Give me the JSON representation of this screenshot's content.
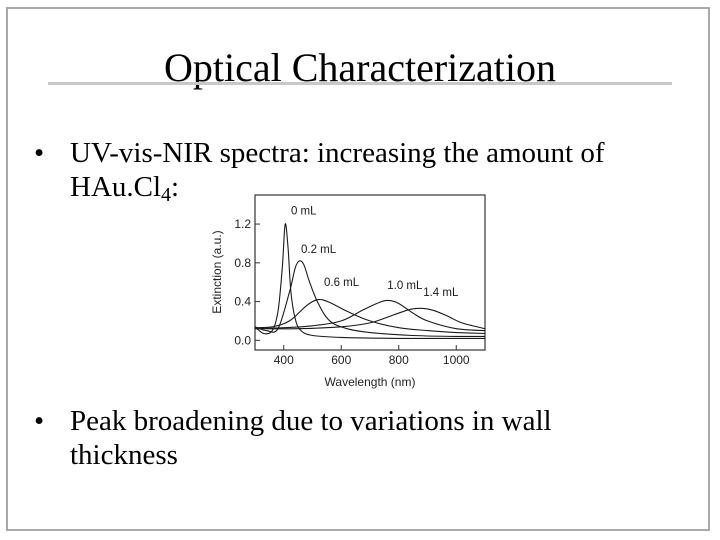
{
  "slide": {
    "title": "Optical Characterization",
    "bullets": [
      {
        "marker": "•",
        "line1": "UV-vis-NIR spectra: increasing the amount of",
        "line2_prefix": "HAu.Cl",
        "line2_sub": "4",
        "line2_suffix": ":"
      },
      {
        "marker": "•",
        "line1": "Peak broadening due to variations in wall",
        "line2": "thickness"
      }
    ]
  },
  "chart_data": {
    "type": "line",
    "xlabel": "Wavelength (nm)",
    "ylabel": "Extinction (a.u.)",
    "xlim": [
      300,
      1100
    ],
    "ylim": [
      -0.1,
      1.5
    ],
    "x_ticks": [
      400,
      600,
      800,
      1000
    ],
    "y_ticks": [
      0.0,
      0.4,
      0.8,
      1.2
    ],
    "y_tick_labels": [
      "0.0",
      "0.4",
      "0.8",
      "1.2"
    ],
    "series": [
      {
        "name": "0 mL",
        "x": [
          300,
          330,
          360,
          380,
          395,
          405,
          415,
          425,
          440,
          460,
          500,
          600,
          800,
          1000,
          1100
        ],
        "y": [
          0.14,
          0.07,
          0.1,
          0.3,
          0.75,
          1.2,
          0.95,
          0.5,
          0.22,
          0.1,
          0.05,
          0.03,
          0.02,
          0.02,
          0.02
        ],
        "label_x": 425,
        "label_y": 1.3
      },
      {
        "name": "0.2 mL",
        "x": [
          300,
          340,
          380,
          420,
          440,
          455,
          470,
          490,
          520,
          560,
          620,
          700,
          850,
          1000,
          1100
        ],
        "y": [
          0.14,
          0.1,
          0.12,
          0.5,
          0.75,
          0.82,
          0.78,
          0.6,
          0.38,
          0.2,
          0.12,
          0.08,
          0.05,
          0.04,
          0.04
        ],
        "label_x": 460,
        "label_y": 0.9
      },
      {
        "name": "0.6 mL",
        "x": [
          300,
          360,
          420,
          480,
          520,
          560,
          620,
          700,
          800,
          900,
          1000,
          1100
        ],
        "y": [
          0.13,
          0.14,
          0.2,
          0.36,
          0.42,
          0.39,
          0.3,
          0.2,
          0.13,
          0.1,
          0.08,
          0.07
        ],
        "label_x": 540,
        "label_y": 0.56
      },
      {
        "name": "1.0 mL",
        "x": [
          300,
          400,
          500,
          600,
          680,
          740,
          770,
          800,
          850,
          900,
          1000,
          1100
        ],
        "y": [
          0.12,
          0.13,
          0.15,
          0.2,
          0.32,
          0.4,
          0.41,
          0.38,
          0.28,
          0.2,
          0.12,
          0.1
        ],
        "label_x": 760,
        "label_y": 0.53
      },
      {
        "name": "1.4 mL",
        "x": [
          300,
          450,
          600,
          700,
          780,
          840,
          880,
          920,
          970,
          1020,
          1100
        ],
        "y": [
          0.12,
          0.12,
          0.14,
          0.18,
          0.26,
          0.32,
          0.33,
          0.31,
          0.25,
          0.18,
          0.12
        ],
        "label_x": 885,
        "label_y": 0.46
      }
    ],
    "grid": false
  }
}
